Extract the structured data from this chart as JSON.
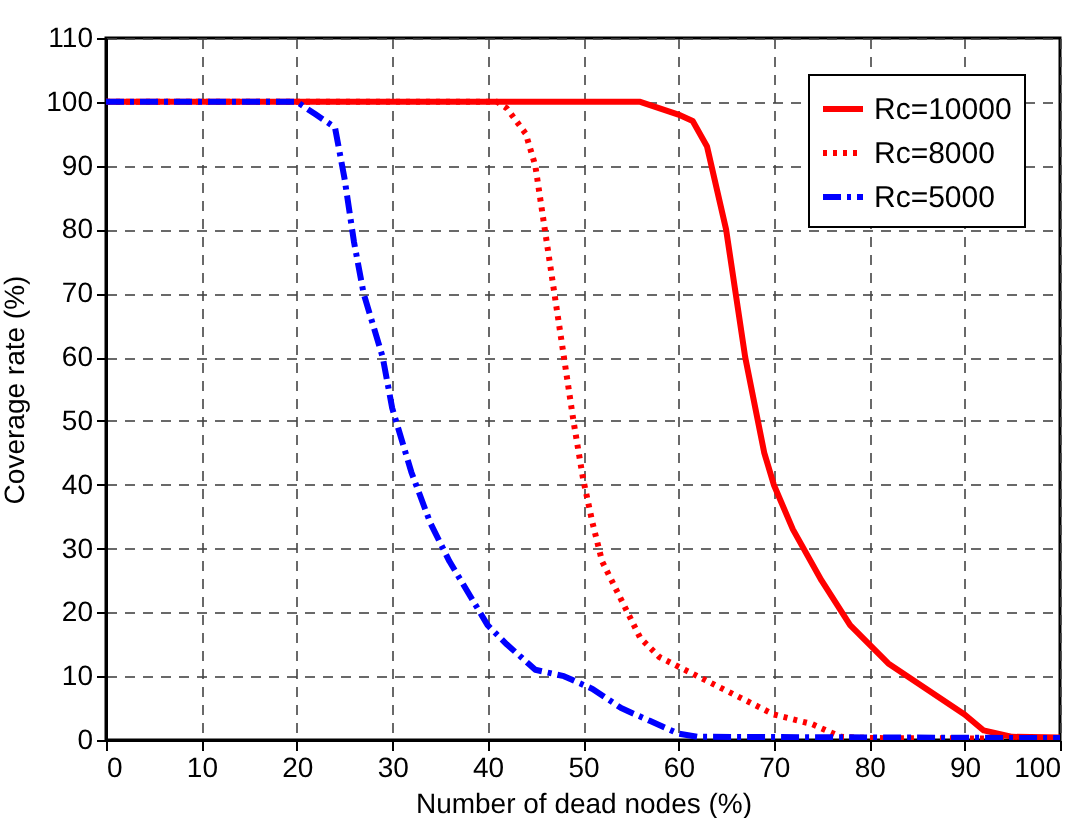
{
  "chart_data": {
    "type": "line",
    "xlabel": "Number of dead nodes  (%)",
    "ylabel": "Coverage rate  (%)",
    "xlim": [
      0,
      100
    ],
    "ylim": [
      0,
      110
    ],
    "xticks": [
      0,
      10,
      20,
      30,
      40,
      50,
      60,
      70,
      80,
      90,
      100
    ],
    "yticks": [
      0,
      10,
      20,
      30,
      40,
      50,
      60,
      70,
      80,
      90,
      100,
      110
    ],
    "grid": true,
    "legend": "top right",
    "marker": "none",
    "series": [
      {
        "name": "Rc=10000",
        "color": "#ff0000",
        "line_style": "solid",
        "x": [
          0,
          56,
          60,
          61.5,
          63,
          65,
          67,
          69,
          70,
          72,
          75,
          78,
          82,
          86,
          90,
          92,
          95,
          100
        ],
        "values": [
          100,
          100,
          98,
          97,
          93,
          80,
          60,
          45,
          40,
          33,
          25,
          18,
          12,
          8,
          4,
          1.5,
          0.5,
          0.4
        ]
      },
      {
        "name": "Rc=8000",
        "color": "#ff0000",
        "line_style": "dotted",
        "x": [
          0,
          41,
          42,
          44,
          45,
          46,
          47,
          48,
          49,
          50,
          51,
          52,
          54,
          56,
          58,
          62,
          66,
          70,
          74,
          77,
          80,
          100
        ],
        "values": [
          100,
          100,
          99,
          95,
          90,
          80,
          70,
          60,
          50,
          41,
          34,
          28,
          22,
          16,
          13,
          10,
          7,
          4,
          2.5,
          0.5,
          0.3,
          0.2
        ]
      },
      {
        "name": "Rc=5000",
        "color": "#0000ff",
        "line_style": "dashdot",
        "x": [
          0,
          20,
          22,
          24,
          25,
          26,
          27,
          29,
          30,
          32,
          34,
          36,
          38,
          40,
          42,
          45,
          48,
          51,
          54,
          57,
          60,
          62,
          100
        ],
        "values": [
          100,
          100,
          98,
          96,
          88,
          78,
          70,
          60,
          52,
          42,
          34,
          28,
          23,
          18,
          15,
          11,
          10,
          8,
          5,
          3,
          1,
          0.5,
          0.3
        ]
      }
    ]
  }
}
